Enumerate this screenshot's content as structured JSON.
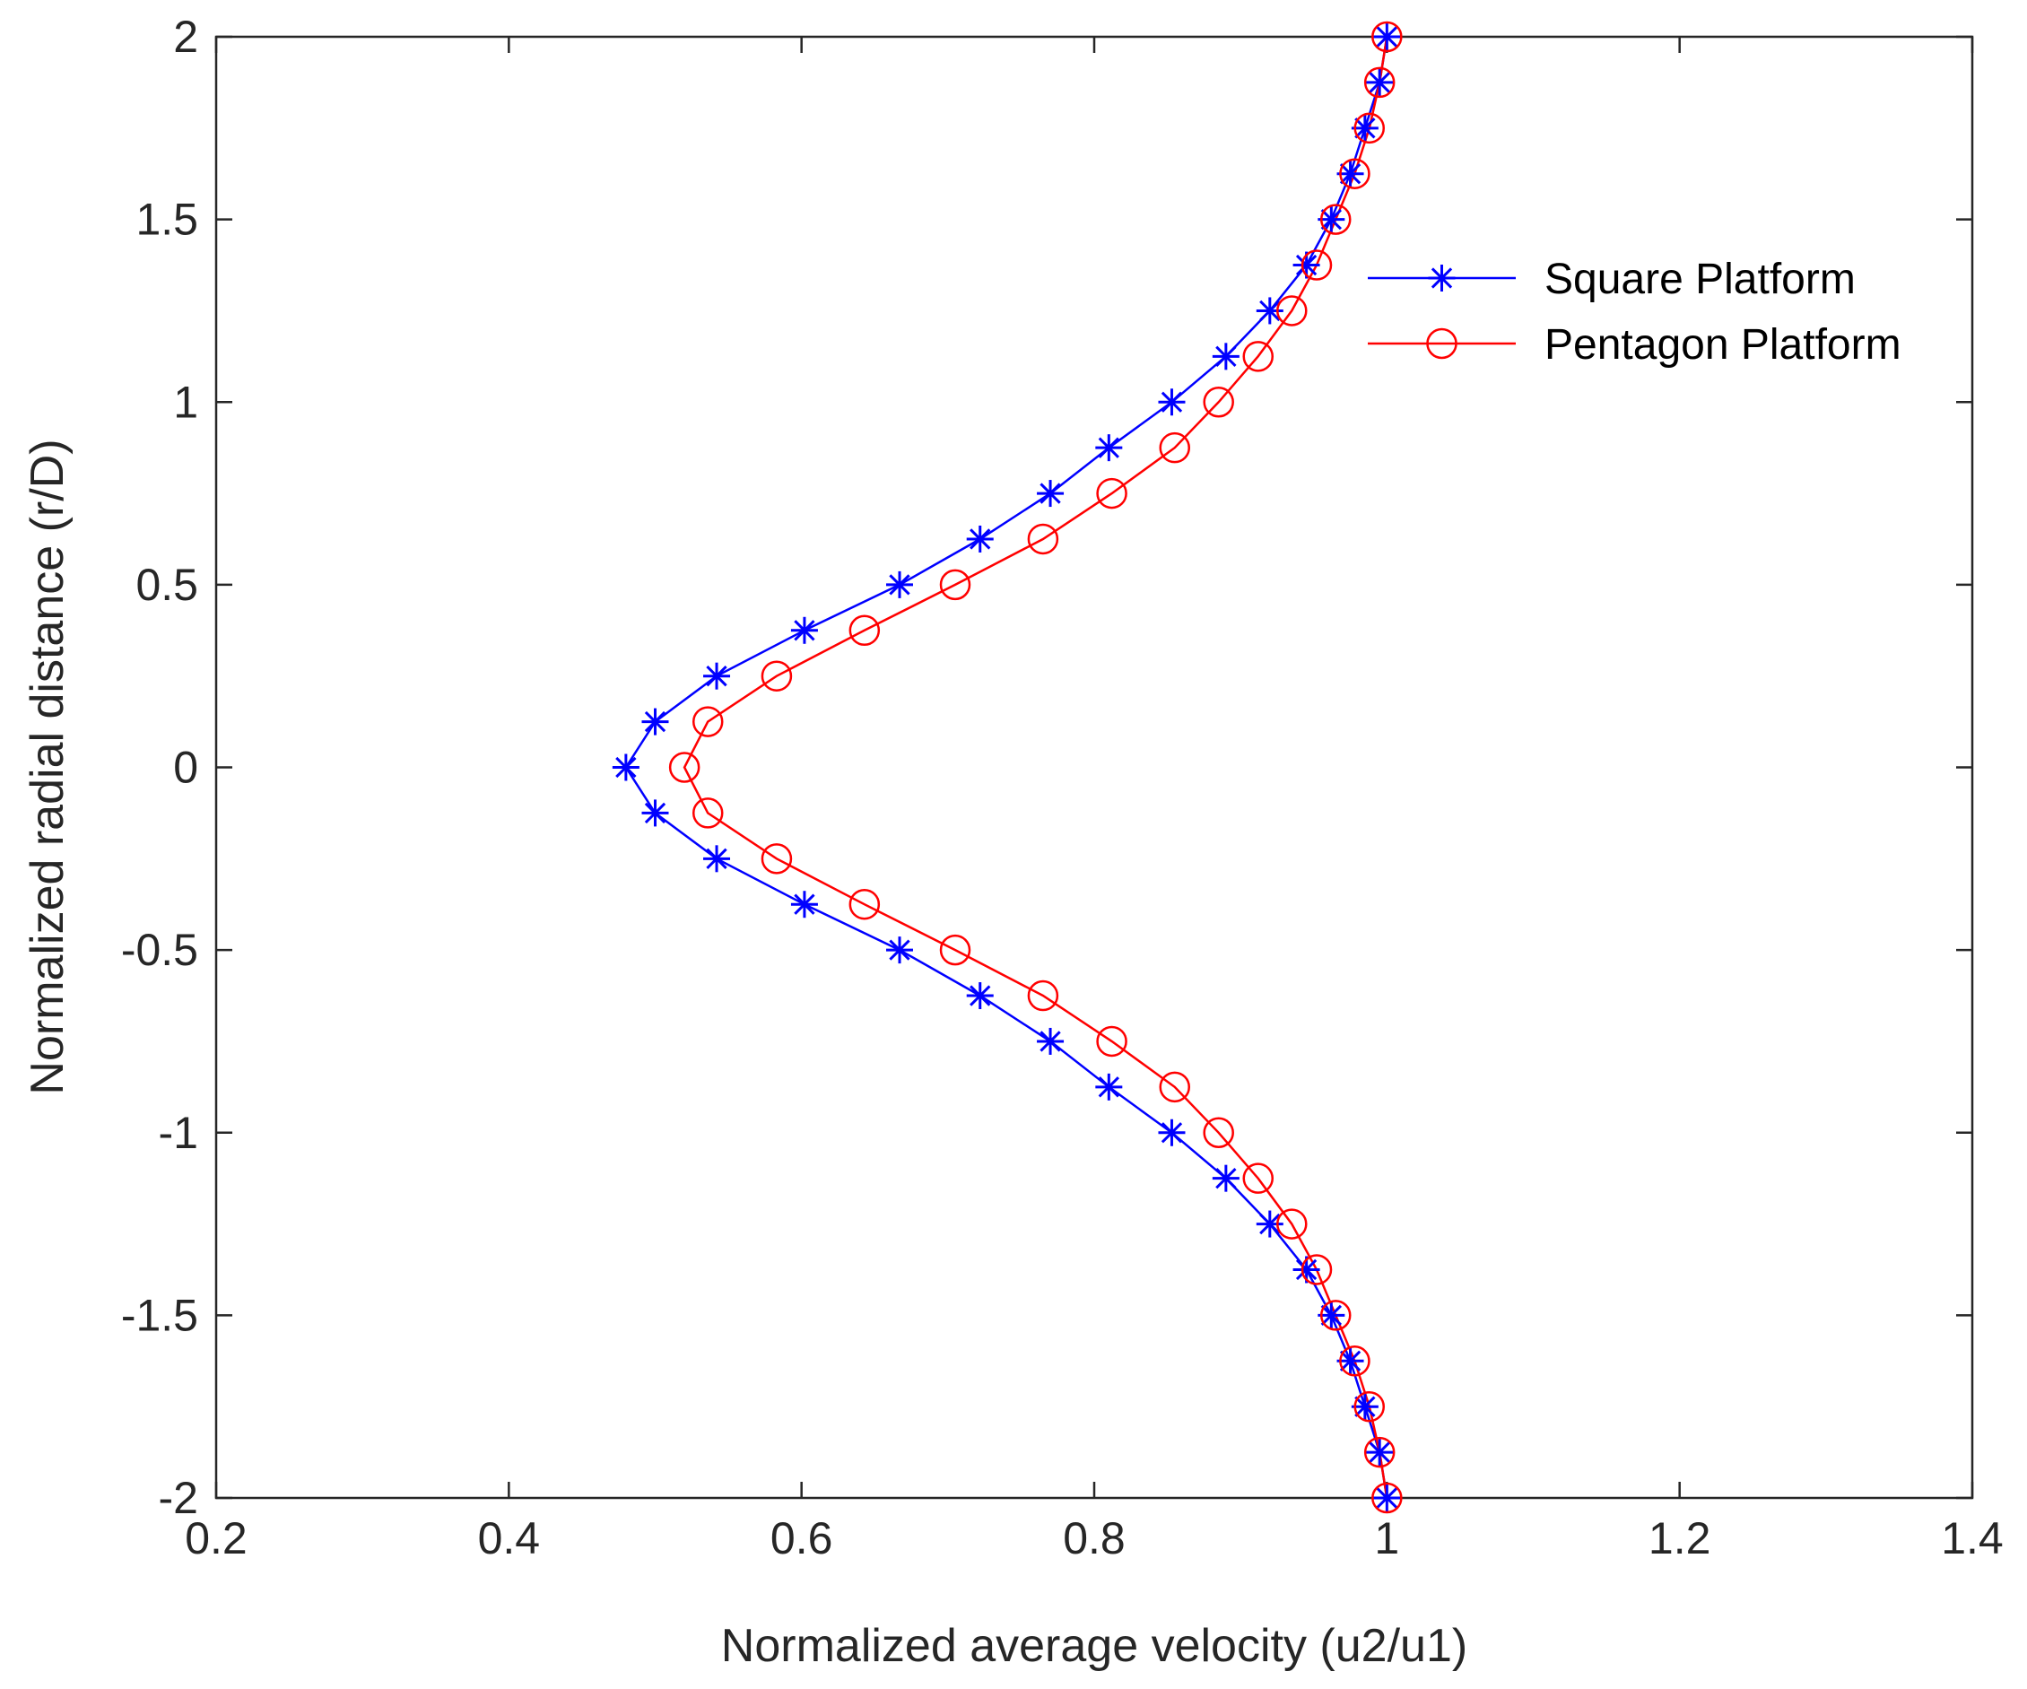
{
  "chart_data": {
    "type": "line",
    "title": "",
    "xlabel": "Normalized average velocity (u2/u1)",
    "ylabel": "Normalized radial distance (r/D)",
    "xlim": [
      0.2,
      1.4
    ],
    "ylim": [
      -2,
      2
    ],
    "xticks": [
      0.2,
      0.4,
      0.6,
      0.8,
      1,
      1.2,
      1.4
    ],
    "xtick_labels": [
      "0.2",
      "0.4",
      "0.6",
      "0.8",
      "1",
      "1.2",
      "1.4"
    ],
    "yticks": [
      -2,
      -1.5,
      -1,
      -0.5,
      0,
      0.5,
      1,
      1.5,
      2
    ],
    "ytick_labels": [
      "-2",
      "-1.5",
      "-1",
      "-0.5",
      "0",
      "0.5",
      "1",
      "1.5",
      "2"
    ],
    "grid": false,
    "legend_position": "top-right",
    "y": [
      2,
      1.875,
      1.75,
      1.625,
      1.5,
      1.375,
      1.25,
      1.125,
      1,
      0.875,
      0.75,
      0.625,
      0.5,
      0.375,
      0.25,
      0.125,
      0,
      -0.125,
      -0.25,
      -0.375,
      -0.5,
      -0.625,
      -0.75,
      -0.875,
      -1,
      -1.125,
      -1.25,
      -1.375,
      -1.5,
      -1.625,
      -1.75,
      -1.875,
      -2
    ],
    "series": [
      {
        "name": "Square Platform",
        "color": "#0000ff",
        "marker": "asterisk",
        "x": [
          1.0,
          0.995,
          0.985,
          0.975,
          0.962,
          0.945,
          0.92,
          0.89,
          0.853,
          0.81,
          0.77,
          0.722,
          0.667,
          0.602,
          0.542,
          0.5,
          0.48,
          0.5,
          0.542,
          0.602,
          0.667,
          0.722,
          0.77,
          0.81,
          0.853,
          0.89,
          0.92,
          0.945,
          0.962,
          0.975,
          0.985,
          0.995,
          1.0
        ]
      },
      {
        "name": "Pentagon Platform",
        "color": "#ff0000",
        "marker": "circle",
        "x": [
          1.0,
          0.995,
          0.988,
          0.978,
          0.965,
          0.952,
          0.935,
          0.912,
          0.885,
          0.855,
          0.812,
          0.765,
          0.705,
          0.643,
          0.583,
          0.536,
          0.52,
          0.536,
          0.583,
          0.643,
          0.705,
          0.765,
          0.812,
          0.855,
          0.885,
          0.912,
          0.935,
          0.952,
          0.965,
          0.978,
          0.988,
          0.995,
          1.0
        ]
      }
    ]
  }
}
